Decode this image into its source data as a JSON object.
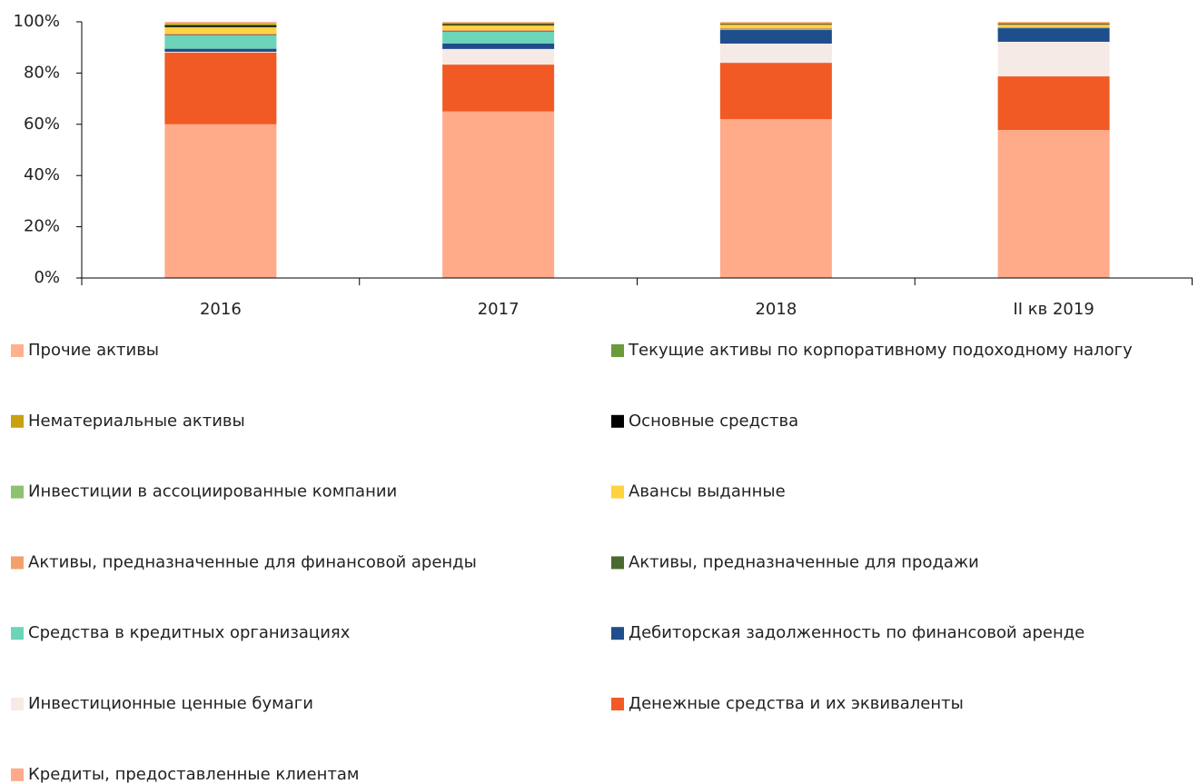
{
  "chart_data": {
    "type": "stacked_bar",
    "categories": [
      "2016",
      "2017",
      "2018",
      "II кв 2019"
    ],
    "ylim": [
      0,
      100
    ],
    "yticks": [
      {
        "value": 0,
        "label": "0%"
      },
      {
        "value": 20,
        "label": "20%"
      },
      {
        "value": 40,
        "label": "40%"
      },
      {
        "value": 60,
        "label": "60%"
      },
      {
        "value": 80,
        "label": "80%"
      },
      {
        "value": 100,
        "label": "100%"
      }
    ],
    "grid": false,
    "series": [
      {
        "name": "Кредиты, предоставленные клиентам",
        "color": "#ffaa88",
        "values": [
          60,
          65,
          62,
          57.8
        ]
      },
      {
        "name": "Денежные средства и их эквиваленты",
        "color": "#f15a24",
        "values": [
          28,
          18.3,
          22,
          20.9
        ]
      },
      {
        "name": "Инвестиционные ценные бумаги",
        "color": "#f5eae6",
        "values": [
          0.3,
          6.1,
          7.5,
          13.5
        ]
      },
      {
        "name": "Дебиторская задолженность по финансовой аренде",
        "color": "#1f4e8c",
        "values": [
          1.2,
          2.1,
          5.3,
          5.3
        ]
      },
      {
        "name": "Средства в кредитных организациях",
        "color": "#6cd4b8",
        "values": [
          5.2,
          4.6,
          0.3,
          0.2
        ]
      },
      {
        "name": "Активы, предназначенные для продажи",
        "color": "#4a6b2f",
        "values": [
          0.3,
          0.3,
          0.2,
          0.1
        ]
      },
      {
        "name": "Активы, предназначенные для финансовой аренды",
        "color": "#f4a06a",
        "values": [
          0.5,
          0.4,
          0.2,
          0.2
        ]
      },
      {
        "name": "Авансы выданные",
        "color": "#ffd23f",
        "values": [
          2.2,
          1.6,
          1.3,
          0.8
        ]
      },
      {
        "name": "Инвестиции в ассоциированные компании",
        "color": "#8dc26f",
        "values": [
          0.3,
          0.3,
          0.1,
          0.1
        ]
      },
      {
        "name": "Основные средства",
        "color": "#000000",
        "values": [
          0.6,
          0.4,
          0.2,
          0.2
        ]
      },
      {
        "name": "Нематериальные активы",
        "color": "#c9a010",
        "values": [
          0.5,
          0.5,
          0.3,
          0.4
        ]
      },
      {
        "name": "Текущие активы по корпоративному подоходному налогу",
        "color": "#6a9a3a",
        "values": [
          0.2,
          0.1,
          0.1,
          0.1
        ]
      },
      {
        "name": "Прочие активы",
        "color": "#ffb08e",
        "values": [
          0.7,
          0.3,
          0.5,
          0.4
        ]
      }
    ]
  }
}
